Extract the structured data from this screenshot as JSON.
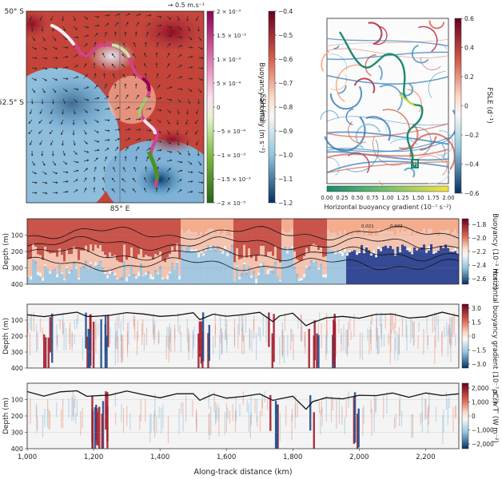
{
  "colors": {
    "red_dark": "#67001f",
    "red": "#c4443a",
    "red_light": "#f4a582",
    "white": "#f7f7f7",
    "blue_light": "#92c5de",
    "blue": "#2f79b5",
    "blue_dark": "#053061",
    "green_dark": "#276419",
    "green": "#7fbc41",
    "pink": "#d6418a",
    "magenta_dark": "#8e0152",
    "track_teal": "#1a8a6e",
    "depth_line": "#111111"
  },
  "icons": {
    "arrow_key": "right-arrow"
  },
  "chart_data": [
    {
      "id": "map_ssh",
      "type": "heatmap",
      "description_type": "map with velocity vectors and buoyancy-anomaly track",
      "lat_ticks": [
        "50° S",
        "52.5° S"
      ],
      "lon_ticks": [
        "85° E"
      ],
      "quiver_key_label": "→ 0.5 m.s⁻¹",
      "colorbars": [
        {
          "label": "Buoyancy anomaly (m s⁻²)",
          "ticks": [
            "2 × 10⁻³",
            "1.5 × 10⁻³",
            "1 × 10⁻³",
            "5 × 10⁻⁴",
            "0",
            "−5 × 10⁻⁴",
            "−1 × 10⁻³",
            "−1.5 × 10⁻³",
            "−2 × 10⁻³"
          ],
          "range": [
            -0.002,
            0.002
          ],
          "cmap": "PiYG"
        },
        {
          "label": "SSH (m)",
          "ticks": [
            "−0.4",
            "−0.5",
            "−0.6",
            "−0.7",
            "−0.8",
            "−0.9",
            "−1.0",
            "−1.1",
            "−1.2"
          ],
          "range": [
            -1.2,
            -0.4
          ],
          "cmap": "RdBu_r"
        }
      ]
    },
    {
      "id": "fsle_map",
      "type": "heatmap",
      "description_type": "FSLE streak map with glider track colored by horizontal buoyancy gradient",
      "colorbars": [
        {
          "label": "FSLE (d⁻¹)",
          "ticks": [
            "0.6",
            "0.4",
            "0.2",
            "0",
            "−0.2",
            "−0.4",
            "−0.6"
          ],
          "range": [
            -0.6,
            0.6
          ],
          "cmap": "RdBu_r"
        },
        {
          "label": "Horizontal buoyancy gradient (10⁻⁷ s⁻²)",
          "ticks": [
            "0.00",
            "0.25",
            "0.50",
            "0.75",
            "1.00",
            "1.25",
            "1.50",
            "1.75",
            "2.00"
          ],
          "range": [
            0,
            2
          ],
          "cmap": "viridis-like"
        }
      ]
    },
    {
      "id": "section_buoyancy",
      "type": "heatmap",
      "xlabel": "",
      "ylabel": "Depth (m)",
      "y_ticks": [
        "100",
        "200",
        "300",
        "400"
      ],
      "ylim": [
        400,
        0
      ],
      "xlim": [
        1000,
        2300
      ],
      "colorbar": {
        "label": "Buoyancy (10⁻² m s⁻²)",
        "ticks": [
          "−1.8",
          "−2.0",
          "−2.2",
          "−2.4",
          "−2.6"
        ],
        "range": [
          -2.6,
          -1.8
        ]
      },
      "contour_labels": [
        "0.021",
        "0.022"
      ]
    },
    {
      "id": "section_gradient",
      "type": "heatmap",
      "ylabel": "Depth (m)",
      "y_ticks": [
        "100",
        "200",
        "300",
        "400"
      ],
      "ylim": [
        400,
        0
      ],
      "xlim": [
        1000,
        2300
      ],
      "colorbar": {
        "label": "Horizontal buoyancy gradient (10⁻⁷ s⁻²)",
        "ticks": [
          "3.0",
          "1.5",
          "0",
          "−1.5",
          "−3.0"
        ],
        "range": [
          -3.0,
          3.0
        ]
      }
    },
    {
      "id": "section_heatflux",
      "type": "heatmap",
      "ylabel": "Depth (m)",
      "xlabel": "Along-track distance (km)",
      "y_ticks": [
        "100",
        "200",
        "300",
        "400"
      ],
      "x_ticks": [
        "1,000",
        "1,200",
        "1,400",
        "1,600",
        "1,800",
        "2,000",
        "2,200"
      ],
      "x_tick_values": [
        1000,
        1200,
        1400,
        1600,
        1800,
        2000,
        2200
      ],
      "ylim": [
        400,
        0
      ],
      "xlim": [
        1000,
        2300
      ],
      "colorbar": {
        "label": "ρCₚw′T′ (W m⁻²)",
        "ticks": [
          "2,000",
          "1,000",
          "0",
          "−1,000",
          "−2,000"
        ],
        "range": [
          -2000,
          2000
        ]
      },
      "mixed_layer_depth": {
        "x": [
          1000,
          1050,
          1100,
          1150,
          1180,
          1200,
          1250,
          1300,
          1350,
          1400,
          1450,
          1500,
          1520,
          1560,
          1600,
          1650,
          1700,
          1740,
          1760,
          1800,
          1840,
          1860,
          1900,
          1950,
          2000,
          2050,
          2100,
          2150,
          2200,
          2250,
          2300
        ],
        "y": [
          60,
          75,
          55,
          60,
          90,
          70,
          65,
          55,
          60,
          80,
          70,
          65,
          110,
          75,
          80,
          70,
          60,
          105,
          85,
          70,
          150,
          105,
          75,
          90,
          80,
          70,
          65,
          75,
          70,
          65,
          60
        ]
      }
    }
  ]
}
